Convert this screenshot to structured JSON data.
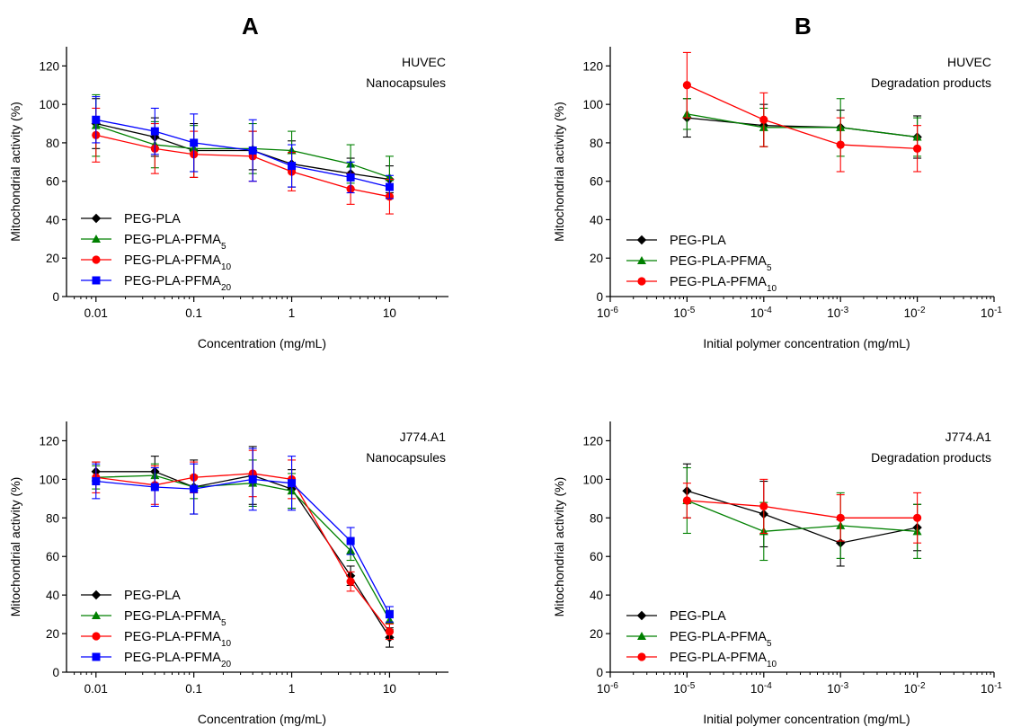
{
  "panel_letters": {
    "left": "A",
    "right": "B"
  },
  "series_styles": {
    "PEG-PLA": {
      "color": "#000000",
      "marker": "diamond"
    },
    "PEG-PLA-PFMA5": {
      "color": "#008000",
      "marker": "triangle"
    },
    "PEG-PLA-PFMA10": {
      "color": "#ff0000",
      "marker": "circle"
    },
    "PEG-PLA-PFMA20": {
      "color": "#0000ff",
      "marker": "square"
    }
  },
  "chart_data": [
    {
      "type": "line",
      "panel": "A-top",
      "annotation": [
        "HUVEC",
        "Nanocapsules"
      ],
      "xlabel": "Concentration (mg/mL)",
      "ylabel": "Mitochondrial activity (%)",
      "x_scale": "log",
      "xlim": [
        0.005,
        40
      ],
      "ylim": [
        0,
        130
      ],
      "x_ticks": [
        0.01,
        0.1,
        1,
        10
      ],
      "x_tick_labels": [
        "0.01",
        "0.1",
        "1",
        "10"
      ],
      "y_ticks": [
        0,
        20,
        40,
        60,
        80,
        100,
        120
      ],
      "legend_position": "bottom-left",
      "x": [
        0.01,
        0.04,
        0.1,
        0.4,
        1,
        4,
        10
      ],
      "series": [
        {
          "name": "PEG-PLA",
          "key": "PEG-PLA",
          "sub": "",
          "values": [
            90,
            83,
            76,
            76,
            69,
            64,
            61
          ],
          "errors": [
            13,
            10,
            14,
            10,
            12,
            8,
            7
          ]
        },
        {
          "name": "PEG-PLA-PFMA",
          "key": "PEG-PLA-PFMA5",
          "sub": "5",
          "values": [
            89,
            79,
            77,
            77,
            76,
            69,
            62
          ],
          "errors": [
            16,
            12,
            12,
            13,
            10,
            10,
            11
          ]
        },
        {
          "name": "PEG-PLA-PFMA",
          "key": "PEG-PLA-PFMA10",
          "sub": "10",
          "values": [
            84,
            77,
            74,
            73,
            65,
            56,
            52
          ],
          "errors": [
            14,
            13,
            12,
            13,
            10,
            8,
            9
          ]
        },
        {
          "name": "PEG-PLA-PFMA",
          "key": "PEG-PLA-PFMA20",
          "sub": "20",
          "values": [
            92,
            86,
            80,
            76,
            68,
            62,
            57
          ],
          "errors": [
            12,
            12,
            15,
            16,
            11,
            8,
            6
          ]
        }
      ]
    },
    {
      "type": "line",
      "panel": "B-top",
      "annotation": [
        "HUVEC",
        "Degradation products"
      ],
      "xlabel": "Initial polymer concentration (mg/mL)",
      "ylabel": "Mitochondrial activity (%)",
      "x_scale": "log",
      "xlim": [
        1e-06,
        0.1
      ],
      "ylim": [
        0,
        130
      ],
      "x_ticks": [
        1e-06,
        1e-05,
        0.0001,
        0.001,
        0.01,
        0.1
      ],
      "x_tick_exponents": [
        "-6",
        "-5",
        "-4",
        "-3",
        "-2",
        "-1"
      ],
      "x_tick_base": "10",
      "y_ticks": [
        0,
        20,
        40,
        60,
        80,
        100,
        120
      ],
      "legend_position": "bottom-left",
      "x": [
        1e-05,
        0.0001,
        0.001,
        0.01
      ],
      "series": [
        {
          "name": "PEG-PLA",
          "key": "PEG-PLA",
          "sub": "",
          "values": [
            93,
            89,
            88,
            83
          ],
          "errors": [
            10,
            11,
            9,
            11
          ]
        },
        {
          "name": "PEG-PLA-PFMA",
          "key": "PEG-PLA-PFMA5",
          "sub": "5",
          "values": [
            95,
            88,
            88,
            83
          ],
          "errors": [
            8,
            10,
            15,
            10
          ]
        },
        {
          "name": "PEG-PLA-PFMA",
          "key": "PEG-PLA-PFMA10",
          "sub": "10",
          "values": [
            110,
            92,
            79,
            77
          ],
          "errors": [
            17,
            14,
            14,
            12
          ]
        }
      ]
    },
    {
      "type": "line",
      "panel": "A-bottom",
      "annotation": [
        "J774.A1",
        "Nanocapsules"
      ],
      "xlabel": "Concentration (mg/mL)",
      "ylabel": "Mitochondrial activity (%)",
      "x_scale": "log",
      "xlim": [
        0.005,
        40
      ],
      "ylim": [
        0,
        130
      ],
      "x_ticks": [
        0.01,
        0.1,
        1,
        10
      ],
      "x_tick_labels": [
        "0.01",
        "0.1",
        "1",
        "10"
      ],
      "y_ticks": [
        0,
        20,
        40,
        60,
        80,
        100,
        120
      ],
      "legend_position": "bottom-left",
      "x": [
        0.01,
        0.04,
        0.1,
        0.4,
        1,
        4,
        10
      ],
      "series": [
        {
          "name": "PEG-PLA",
          "key": "PEG-PLA",
          "sub": "",
          "values": [
            104,
            104,
            96,
            102,
            95,
            50,
            18
          ],
          "errors": [
            5,
            8,
            14,
            15,
            10,
            5,
            5
          ]
        },
        {
          "name": "PEG-PLA-PFMA",
          "key": "PEG-PLA-PFMA5",
          "sub": "5",
          "values": [
            101,
            102,
            96,
            98,
            94,
            63,
            27
          ],
          "errors": [
            6,
            6,
            6,
            12,
            9,
            5,
            5
          ]
        },
        {
          "name": "PEG-PLA-PFMA",
          "key": "PEG-PLA-PFMA10",
          "sub": "10",
          "values": [
            101,
            97,
            101,
            103,
            100,
            47,
            21
          ],
          "errors": [
            8,
            10,
            8,
            12,
            10,
            5,
            4
          ]
        },
        {
          "name": "PEG-PLA-PFMA",
          "key": "PEG-PLA-PFMA20",
          "sub": "20",
          "values": [
            99,
            96,
            95,
            100,
            98,
            68,
            30
          ],
          "errors": [
            9,
            10,
            13,
            16,
            14,
            7,
            4
          ]
        }
      ]
    },
    {
      "type": "line",
      "panel": "B-bottom",
      "annotation": [
        "J774.A1",
        "Degradation products"
      ],
      "xlabel": "Initial polymer concentration (mg/mL)",
      "ylabel": "Mitochondrial activity (%)",
      "x_scale": "log",
      "xlim": [
        1e-06,
        0.1
      ],
      "ylim": [
        0,
        130
      ],
      "x_ticks": [
        1e-06,
        1e-05,
        0.0001,
        0.001,
        0.01,
        0.1
      ],
      "x_tick_exponents": [
        "-6",
        "-5",
        "-4",
        "-3",
        "-2",
        "-1"
      ],
      "x_tick_base": "10",
      "y_ticks": [
        0,
        20,
        40,
        60,
        80,
        100,
        120
      ],
      "legend_position": "bottom-left",
      "x": [
        1e-05,
        0.0001,
        0.001,
        0.01
      ],
      "series": [
        {
          "name": "PEG-PLA",
          "key": "PEG-PLA",
          "sub": "",
          "values": [
            94,
            82,
            67,
            75
          ],
          "errors": [
            14,
            17,
            12,
            12
          ]
        },
        {
          "name": "PEG-PLA-PFMA",
          "key": "PEG-PLA-PFMA5",
          "sub": "5",
          "values": [
            89,
            73,
            76,
            73
          ],
          "errors": [
            17,
            15,
            17,
            14
          ]
        },
        {
          "name": "PEG-PLA-PFMA",
          "key": "PEG-PLA-PFMA10",
          "sub": "10",
          "values": [
            89,
            86,
            80,
            80
          ],
          "errors": [
            9,
            14,
            12,
            13
          ]
        }
      ]
    }
  ]
}
